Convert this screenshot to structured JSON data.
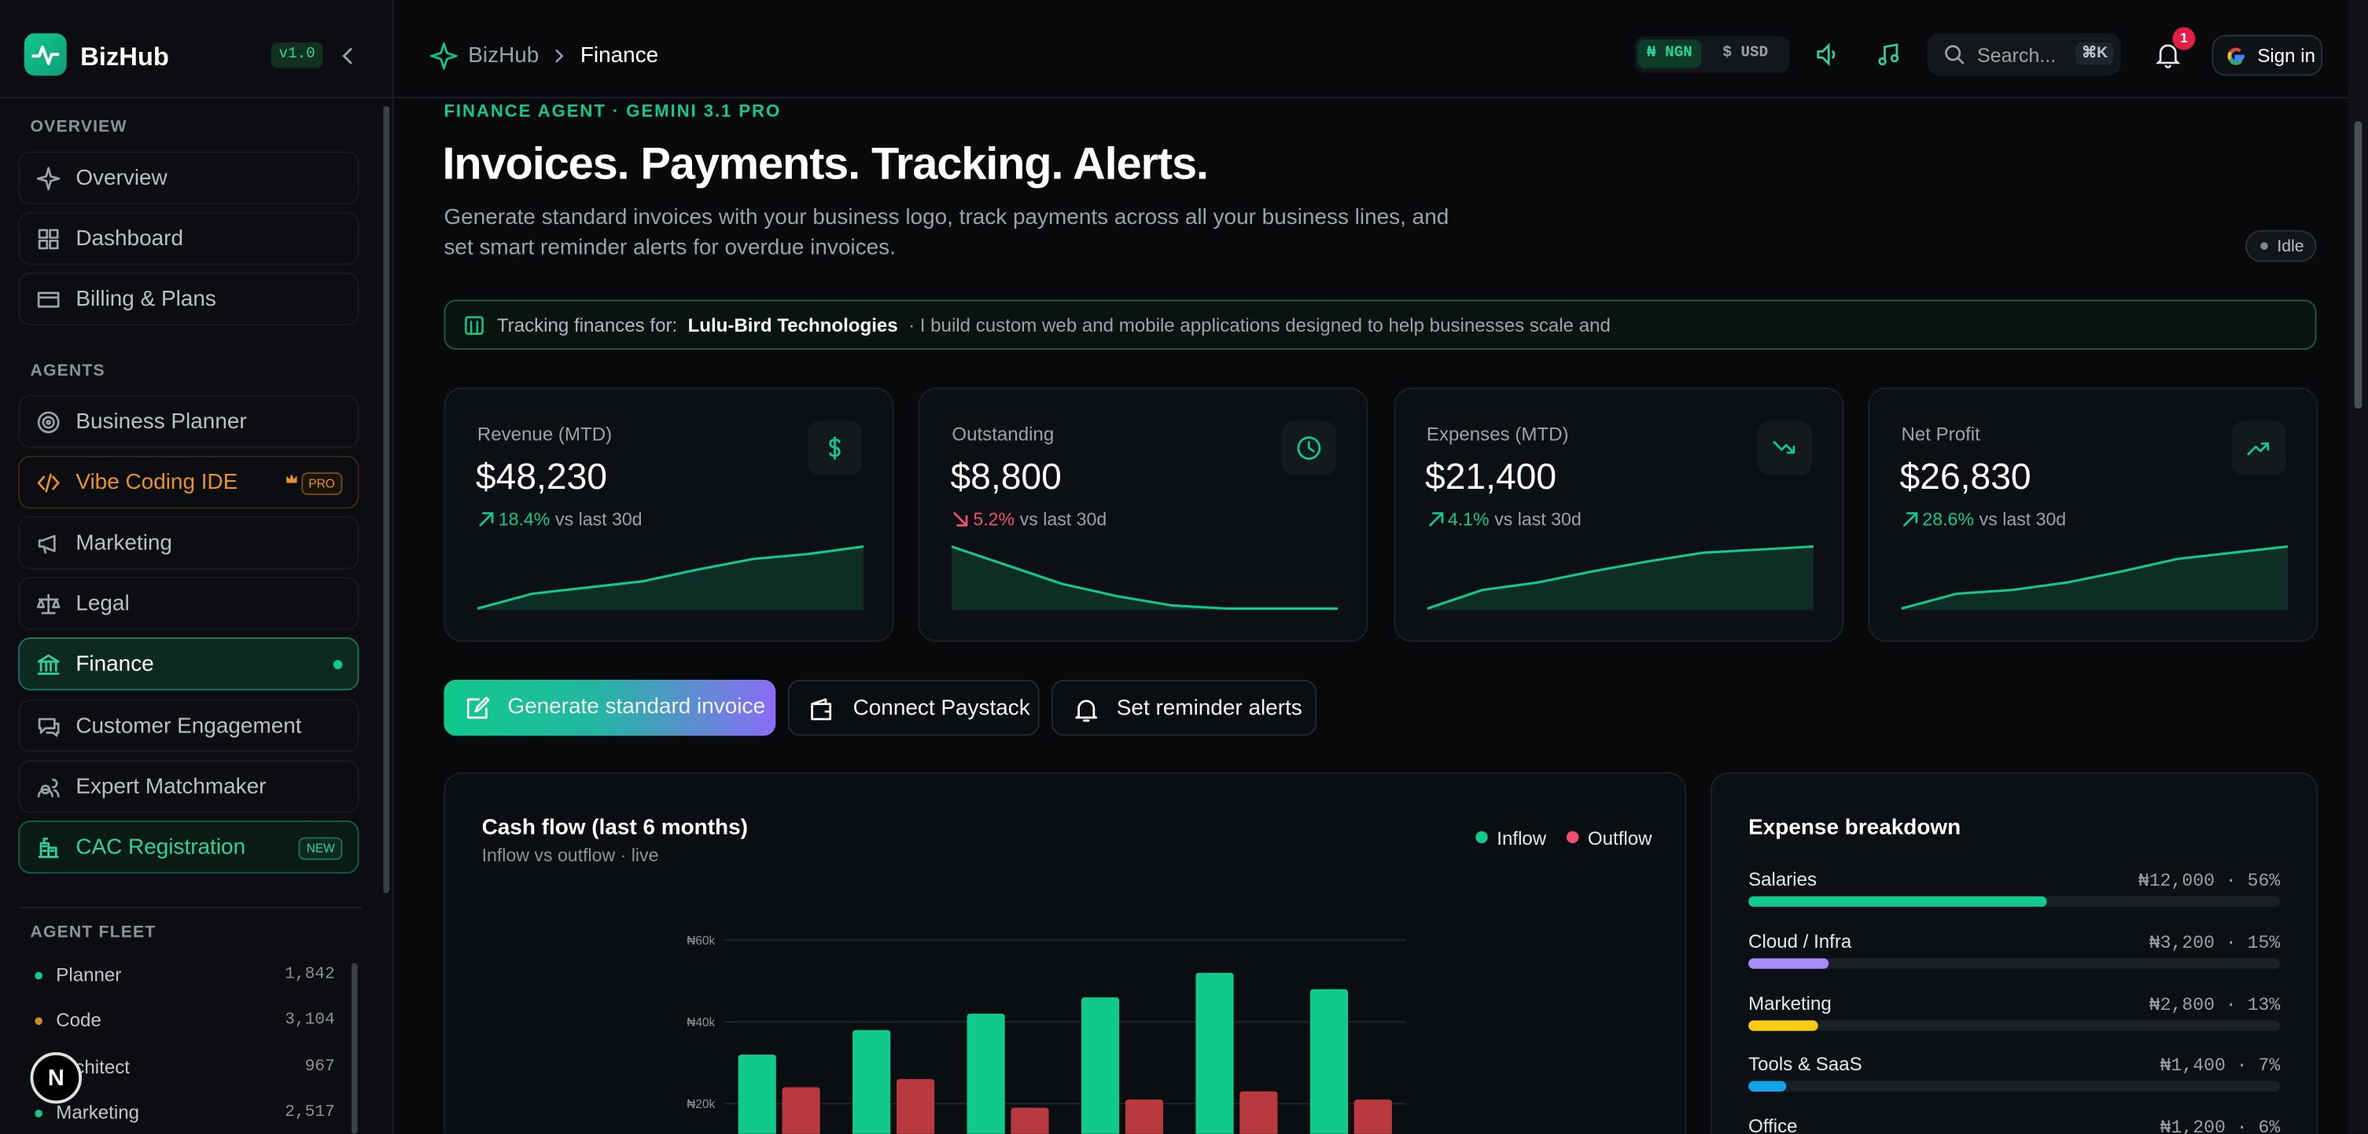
{
  "sidebar": {
    "brand": "BizHub",
    "version": "v1.0",
    "sections": [
      {
        "title": "OVERVIEW",
        "items": [
          {
            "label": "Overview"
          },
          {
            "label": "Dashboard"
          },
          {
            "label": "Billing & Plans"
          }
        ]
      },
      {
        "title": "AGENTS",
        "items": [
          {
            "label": "Business Planner"
          },
          {
            "label": "Vibe Coding IDE",
            "badge": "PRO"
          },
          {
            "label": "Marketing"
          },
          {
            "label": "Legal"
          },
          {
            "label": "Finance"
          },
          {
            "label": "Customer Engagement"
          },
          {
            "label": "Expert Matchmaker"
          },
          {
            "label": "CAC Registration",
            "badge": "NEW"
          }
        ]
      }
    ],
    "fleet": {
      "title": "AGENT FLEET",
      "agents": [
        {
          "name": "Planner",
          "count": "1,842",
          "color": "#10c98a"
        },
        {
          "name": "Code",
          "count": "3,104",
          "color": "#d08a1a"
        },
        {
          "name": "Architect",
          "count": "967",
          "color": "#10c98a"
        },
        {
          "name": "Marketing",
          "count": "2,517",
          "color": "#10c98a"
        }
      ]
    },
    "user_initial": "N"
  },
  "topbar": {
    "breadcrumb": [
      "BizHub",
      "Finance"
    ],
    "currencies": [
      "₦ NGN",
      "$ USD"
    ],
    "search_placeholder": "Search...",
    "search_shortcut": "⌘K",
    "notifications": "1",
    "sign_in": "Sign in"
  },
  "header": {
    "eyebrow": "FINANCE AGENT · GEMINI 3.1 PRO",
    "title": "Invoices. Payments. Tracking. Alerts.",
    "description": "Generate standard invoices with your business logo, track payments across all your business lines, and set smart reminder alerts for overdue invoices.",
    "status": "Idle"
  },
  "tracking": {
    "label": "Tracking finances for:",
    "business": "Lulu-Bird Technologies",
    "tagline": "· I build custom web and mobile applications designed to help businesses scale and"
  },
  "kpis": {
    "trend_ylim": [
      0,
      10
    ],
    "cards": [
      {
        "label": "Revenue (MTD)",
        "value": "$48,230",
        "change": "18.4%",
        "direction": "up",
        "comparison": "vs last 30d",
        "trend": [
          0,
          2.4,
          3.4,
          4.4,
          6.3,
          8,
          8.8,
          10
        ]
      },
      {
        "label": "Outstanding",
        "value": "$8,800",
        "change": "5.2%",
        "direction": "down",
        "comparison": "vs last 30d",
        "trend": [
          10,
          7,
          4,
          2,
          0.5,
          0,
          0,
          0
        ]
      },
      {
        "label": "Expenses (MTD)",
        "value": "$21,400",
        "change": "4.1%",
        "direction": "up",
        "comparison": "vs last 30d",
        "trend": [
          0,
          3,
          4.2,
          6,
          7.6,
          9,
          9.5,
          10
        ]
      },
      {
        "label": "Net Profit",
        "value": "$26,830",
        "change": "28.6%",
        "direction": "up",
        "comparison": "vs last 30d",
        "trend": [
          0,
          2.4,
          3,
          4.2,
          6,
          8,
          9,
          10
        ]
      }
    ]
  },
  "actions": [
    "Generate standard invoice",
    "Connect Paystack",
    "Set reminder alerts"
  ],
  "chart_data": {
    "type": "bar",
    "title": "Cash flow (last 6 months)",
    "subtitle": "Inflow vs outflow · live",
    "categories": [
      null,
      null,
      null,
      null,
      null,
      null
    ],
    "series": [
      {
        "name": "Inflow",
        "color": "#10c98a",
        "values": [
          32000,
          38000,
          42000,
          46000,
          52000,
          48000
        ]
      },
      {
        "name": "Outflow",
        "color": "#b83a3f",
        "values": [
          24000,
          26000,
          19000,
          21000,
          23000,
          21000
        ]
      }
    ],
    "ylim": [
      0,
      60000
    ],
    "yticks": [
      {
        "value": 20000,
        "label": "₦20k"
      },
      {
        "value": 40000,
        "label": "₦40k"
      },
      {
        "value": 60000,
        "label": "₦60k"
      }
    ],
    "grid": true
  },
  "expense_breakdown": {
    "title": "Expense breakdown",
    "items": [
      {
        "name": "Salaries",
        "amount": "₦12,000",
        "share": 56,
        "share_label": "56%",
        "color": "#10c98a"
      },
      {
        "name": "Cloud / Infra",
        "amount": "₦3,200",
        "share": 15,
        "share_label": "15%",
        "color": "#a78bfa"
      },
      {
        "name": "Marketing",
        "amount": "₦2,800",
        "share": 13,
        "share_label": "13%",
        "color": "#facc15"
      },
      {
        "name": "Tools & SaaS",
        "amount": "₦1,400",
        "share": 7,
        "share_label": "7%",
        "color": "#0ea5e9"
      },
      {
        "name": "Office",
        "amount": "₦1,200",
        "share": 6,
        "share_label": "6%",
        "color": "#64748b"
      }
    ]
  }
}
